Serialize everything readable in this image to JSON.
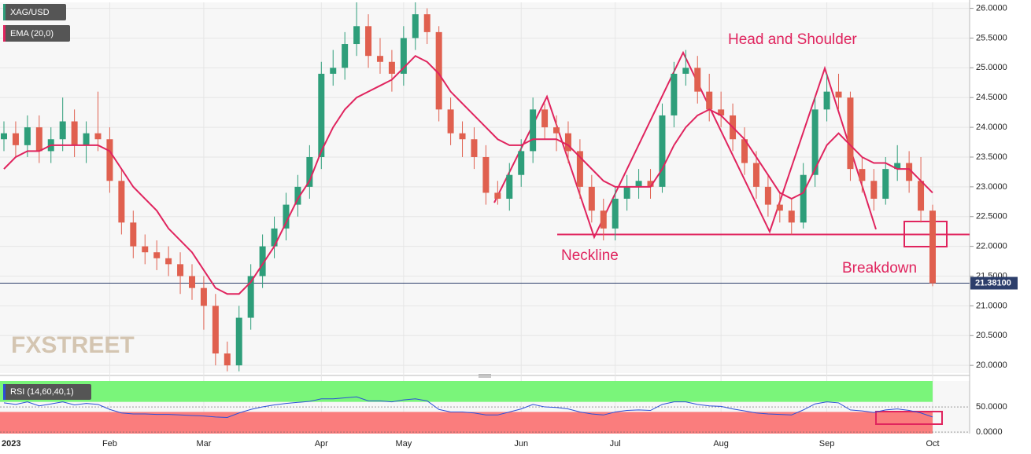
{
  "chart_data": [
    {
      "type": "candlestick",
      "name": "XAG/USD",
      "categories": [
        "2023",
        null,
        null,
        null,
        null,
        null,
        null,
        null,
        null,
        "Feb",
        null,
        null,
        null,
        null,
        null,
        null,
        null,
        "Mar",
        null,
        null,
        null,
        null,
        null,
        null,
        null,
        null,
        null,
        "Apr",
        null,
        null,
        null,
        null,
        null,
        null,
        "May",
        null,
        null,
        null,
        null,
        null,
        null,
        null,
        null,
        null,
        "Jun",
        null,
        null,
        null,
        null,
        null,
        null,
        null,
        "Jul",
        null,
        null,
        null,
        null,
        null,
        null,
        null,
        null,
        "Aug",
        null,
        null,
        null,
        null,
        null,
        null,
        null,
        null,
        "Sep",
        null,
        null,
        null,
        null,
        null,
        null,
        null,
        null,
        "Oct"
      ],
      "open": [
        23.8,
        23.9,
        23.7,
        24.0,
        23.6,
        23.8,
        24.1,
        23.7,
        23.9,
        23.8,
        23.1,
        22.4,
        22.0,
        21.9,
        21.8,
        21.7,
        21.5,
        21.3,
        21.0,
        20.2,
        20.0,
        20.8,
        21.5,
        22.0,
        22.3,
        22.7,
        23.0,
        23.5,
        24.9,
        25.0,
        25.4,
        25.7,
        25.2,
        25.1,
        24.9,
        25.5,
        25.9,
        25.6,
        24.3,
        23.9,
        23.8,
        23.5,
        22.9,
        22.8,
        23.2,
        23.6,
        24.3,
        24.0,
        23.9,
        23.6,
        23.0,
        22.6,
        22.3,
        22.8,
        23.0,
        23.1,
        23.0,
        24.2,
        24.9,
        25.0,
        24.6,
        24.3,
        24.2,
        23.8,
        23.4,
        23.0,
        22.7,
        22.6,
        22.4,
        23.2,
        24.3,
        24.6,
        24.5,
        23.3,
        23.1,
        22.8,
        23.3,
        23.4,
        23.1,
        22.6
      ],
      "high": [
        24.1,
        24.1,
        24.2,
        24.2,
        24.0,
        24.5,
        24.3,
        24.1,
        24.6,
        24.0,
        23.3,
        22.6,
        22.2,
        22.1,
        22.0,
        21.9,
        21.7,
        21.5,
        21.2,
        20.4,
        21.0,
        21.7,
        22.2,
        22.5,
        22.9,
        23.2,
        23.7,
        25.1,
        25.3,
        25.6,
        26.1,
        25.9,
        25.5,
        25.3,
        25.7,
        26.1,
        26.0,
        25.7,
        24.5,
        24.1,
        24.0,
        23.7,
        23.1,
        23.4,
        23.8,
        24.5,
        24.4,
        24.2,
        24.1,
        23.8,
        23.2,
        22.8,
        23.0,
        23.2,
        23.3,
        23.3,
        24.4,
        25.1,
        25.3,
        25.2,
        24.9,
        24.6,
        24.4,
        24.0,
        23.6,
        23.2,
        22.9,
        22.8,
        23.4,
        24.5,
        24.9,
        24.9,
        24.6,
        23.5,
        23.3,
        23.5,
        23.7,
        23.6,
        23.5,
        22.7
      ],
      "low": [
        23.6,
        23.5,
        23.5,
        23.4,
        23.4,
        23.6,
        23.5,
        23.4,
        23.6,
        22.9,
        22.2,
        21.8,
        21.7,
        21.6,
        21.5,
        21.2,
        21.1,
        20.6,
        20.0,
        19.9,
        19.9,
        20.6,
        21.3,
        21.8,
        22.1,
        22.5,
        22.8,
        23.3,
        24.7,
        24.8,
        25.2,
        25.0,
        24.9,
        24.6,
        24.7,
        25.3,
        25.4,
        24.1,
        23.7,
        23.5,
        23.3,
        22.7,
        22.7,
        22.6,
        23.0,
        23.4,
        23.8,
        23.6,
        23.4,
        22.8,
        22.4,
        22.1,
        22.1,
        22.6,
        22.8,
        22.8,
        22.9,
        24.0,
        24.7,
        24.4,
        24.1,
        24.0,
        23.6,
        23.2,
        22.8,
        22.5,
        22.4,
        22.2,
        22.3,
        23.0,
        24.1,
        24.3,
        23.1,
        22.9,
        22.6,
        22.7,
        23.1,
        22.9,
        22.4,
        21.33
      ],
      "close": [
        23.9,
        23.7,
        24.0,
        23.6,
        23.8,
        24.1,
        23.7,
        23.9,
        23.8,
        23.1,
        22.4,
        22.0,
        21.9,
        21.8,
        21.7,
        21.5,
        21.3,
        21.0,
        20.2,
        20.0,
        20.8,
        21.5,
        22.0,
        22.3,
        22.7,
        23.0,
        23.5,
        24.9,
        25.0,
        25.4,
        25.7,
        25.2,
        25.1,
        24.9,
        25.5,
        25.9,
        25.6,
        24.3,
        23.9,
        23.8,
        23.5,
        22.9,
        22.8,
        23.2,
        23.6,
        24.3,
        24.0,
        23.9,
        23.6,
        23.0,
        22.6,
        22.3,
        22.8,
        23.0,
        23.1,
        23.0,
        24.2,
        24.9,
        25.0,
        24.6,
        24.3,
        24.2,
        23.8,
        23.4,
        23.0,
        22.7,
        22.6,
        22.4,
        23.2,
        24.3,
        24.6,
        24.5,
        23.3,
        23.1,
        22.8,
        23.3,
        23.4,
        23.1,
        22.6,
        21.38
      ],
      "up_color": "#2e9e7a",
      "down_color": "#e0604f",
      "ema": {
        "name": "EMA (20,0)",
        "color": "#e0245e",
        "values": [
          23.3,
          23.5,
          23.6,
          23.6,
          23.7,
          23.7,
          23.7,
          23.7,
          23.7,
          23.6,
          23.3,
          23.0,
          22.8,
          22.6,
          22.3,
          22.1,
          21.9,
          21.6,
          21.3,
          21.2,
          21.2,
          21.4,
          21.7,
          22.0,
          22.4,
          22.8,
          23.1,
          23.6,
          24.0,
          24.3,
          24.5,
          24.6,
          24.7,
          24.8,
          25.0,
          25.2,
          25.1,
          24.9,
          24.6,
          24.4,
          24.2,
          24.0,
          23.8,
          23.7,
          23.7,
          23.8,
          23.8,
          23.8,
          23.7,
          23.5,
          23.3,
          23.1,
          23.0,
          23.0,
          23.0,
          23.0,
          23.3,
          23.7,
          24.0,
          24.2,
          24.3,
          24.2,
          24.0,
          23.8,
          23.5,
          23.2,
          22.9,
          22.8,
          22.9,
          23.3,
          23.7,
          23.9,
          23.7,
          23.5,
          23.4,
          23.4,
          23.3,
          23.3,
          23.1,
          22.9
        ]
      },
      "ylim": [
        19.87,
        26.1
      ],
      "yticks": [
        {
          "value": 20,
          "label": "20.0000"
        },
        {
          "value": 20.5,
          "label": "20.5000"
        },
        {
          "value": 21,
          "label": "21.0000"
        },
        {
          "value": 21.5,
          "label": "21.5000"
        },
        {
          "value": 22,
          "label": "22.0000"
        },
        {
          "value": 22.5,
          "label": "22.5000"
        },
        {
          "value": 23,
          "label": "23.0000"
        },
        {
          "value": 23.5,
          "label": "23.5000"
        },
        {
          "value": 24,
          "label": "24.0000"
        },
        {
          "value": 24.5,
          "label": "24.5000"
        },
        {
          "value": 25,
          "label": "25.0000"
        },
        {
          "value": 25.5,
          "label": "25.5000"
        },
        {
          "value": 26,
          "label": "26.0000"
        }
      ],
      "last_price": {
        "value": 21.381,
        "label": "21.38100"
      },
      "neckline": 22.2,
      "annotations": [
        "Head and Shoulder",
        "Neckline",
        "Breakdown"
      ],
      "watermark": "FXSTREET",
      "grid": true
    },
    {
      "type": "line",
      "series": [
        {
          "name": "RSI (14,60,40,1)",
          "color": "#2b4fd8",
          "values": [
            58,
            55,
            60,
            52,
            56,
            60,
            54,
            57,
            55,
            45,
            38,
            36,
            36,
            35,
            35,
            34,
            33,
            32,
            30,
            29,
            38,
            45,
            50,
            54,
            57,
            59,
            61,
            66,
            66,
            68,
            70,
            62,
            62,
            60,
            64,
            66,
            62,
            45,
            40,
            40,
            38,
            34,
            34,
            40,
            46,
            55,
            50,
            49,
            46,
            40,
            36,
            34,
            40,
            43,
            44,
            43,
            55,
            60,
            60,
            55,
            52,
            51,
            46,
            42,
            38,
            36,
            35,
            34,
            44,
            56,
            60,
            58,
            44,
            42,
            39,
            44,
            46,
            43,
            38,
            30
          ]
        }
      ],
      "upper": 60,
      "lower": 40,
      "upper_color": "#7af57a",
      "lower_color": "#fa7d7d",
      "ylim": [
        -3,
        101.6
      ],
      "yticks": [
        {
          "value": 50,
          "label": "50.0000"
        },
        {
          "value": 0,
          "label": "0.0000"
        }
      ]
    }
  ]
}
